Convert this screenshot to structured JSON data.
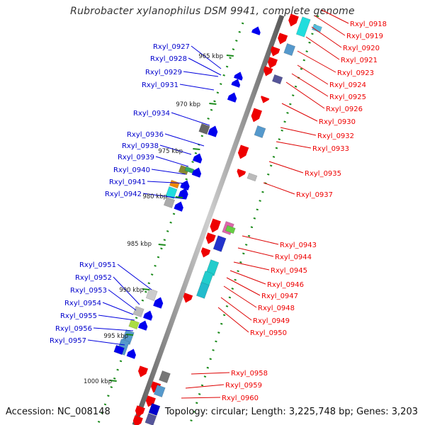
{
  "title": "Rubrobacter xylanophilus DSM 9941, complete genome",
  "accession": "Accession: NC_008148",
  "topology": "Topology: circular; Length: 3,225,748 bp; Genes: 3,203",
  "colors": {
    "left_strand_label": "#0000cc",
    "right_strand_label": "#ff0000",
    "backbone": "#888888",
    "tick_green": "#1a8a1a"
  },
  "kbp_ticks": [
    "965 kbp",
    "970 kbp",
    "975 kbp",
    "980 kbp",
    "985 kbp",
    "990 kbp",
    "995 kbp",
    "1000 kbp"
  ],
  "left_genes": [
    "Rxyl_0927",
    "Rxyl_0928",
    "Rxyl_0929",
    "Rxyl_0931",
    "Rxyl_0934",
    "Rxyl_0936",
    "Rxyl_0938",
    "Rxyl_0939",
    "Rxyl_0940",
    "Rxyl_0941",
    "Rxyl_0942",
    "Rxyl_0951",
    "Rxyl_0952",
    "Rxyl_0953",
    "Rxyl_0954",
    "Rxyl_0955",
    "Rxyl_0956",
    "Rxyl_0957"
  ],
  "right_genes": [
    "Rxyl_0918",
    "Rxyl_0919",
    "Rxyl_0920",
    "Rxyl_0921",
    "Rxyl_0923",
    "Rxyl_0924",
    "Rxyl_0925",
    "Rxyl_0926",
    "Rxyl_0930",
    "Rxyl_0932",
    "Rxyl_0933",
    "Rxyl_0935",
    "Rxyl_0937",
    "Rxyl_0943",
    "Rxyl_0944",
    "Rxyl_0945",
    "Rxyl_0946",
    "Rxyl_0947",
    "Rxyl_0948",
    "Rxyl_0949",
    "Rxyl_0950",
    "Rxyl_0958",
    "Rxyl_0959",
    "Rxyl_0960"
  ]
}
